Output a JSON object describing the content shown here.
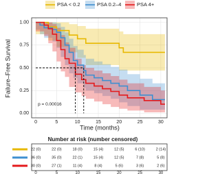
{
  "chart_data": {
    "type": "survival",
    "step": true,
    "grid": true,
    "legend_position": "top",
    "y_label": "Failure–Free Survival",
    "x_label": "Time (months)",
    "annotation": "p = 0.00016",
    "median_level": 0.5,
    "medians": [
      9.5,
      11.5
    ],
    "xlim": [
      -1,
      31.5
    ],
    "ylim": [
      -0.05,
      1.05
    ],
    "xticks": [
      0,
      5,
      10,
      15,
      20,
      25,
      30
    ],
    "yticks": [
      {
        "value": 0,
        "label": "0.00"
      },
      {
        "value": 0.25,
        "label": "0.25"
      },
      {
        "value": 0.5,
        "label": "0.50"
      },
      {
        "value": 0.75,
        "label": "0.75"
      },
      {
        "value": 1,
        "label": "1.00"
      }
    ],
    "series": [
      {
        "name": "PSA < 0.2",
        "color": "#E7B800",
        "x": [
          0,
          3,
          5,
          8,
          10,
          12,
          20,
          21,
          31
        ],
        "values": [
          1,
          0.95,
          0.91,
          0.86,
          0.82,
          0.77,
          0.72,
          0.67,
          0.67
        ],
        "lower": [
          1,
          0.87,
          0.8,
          0.73,
          0.67,
          0.61,
          0.53,
          0.47,
          0.47
        ],
        "upper": [
          1,
          1,
          1,
          0.98,
          0.96,
          0.93,
          0.9,
          0.87,
          0.87
        ]
      },
      {
        "name": "PSA 0.2–4",
        "color": "#3E8FD0",
        "x": [
          0,
          1,
          2,
          4,
          5,
          6,
          7,
          8,
          9,
          10,
          11.5,
          12,
          14,
          16,
          18,
          20,
          22,
          25,
          28,
          31
        ],
        "values": [
          1,
          0.97,
          0.94,
          0.92,
          0.89,
          0.83,
          0.75,
          0.67,
          0.58,
          0.53,
          0.47,
          0.42,
          0.39,
          0.36,
          0.33,
          0.3,
          0.25,
          0.2,
          0.15,
          0.15
        ],
        "lower": [
          1,
          0.92,
          0.87,
          0.83,
          0.79,
          0.72,
          0.62,
          0.53,
          0.44,
          0.39,
          0.33,
          0.28,
          0.25,
          0.22,
          0.19,
          0.16,
          0.12,
          0.08,
          0.04,
          0.04
        ],
        "upper": [
          1,
          1,
          1,
          1,
          0.99,
          0.95,
          0.89,
          0.82,
          0.74,
          0.7,
          0.64,
          0.6,
          0.57,
          0.54,
          0.51,
          0.48,
          0.43,
          0.38,
          0.33,
          0.33
        ]
      },
      {
        "name": "PSA 4+",
        "color": "#E41A1C",
        "x": [
          0,
          2,
          3,
          4,
          5,
          6,
          7,
          8,
          9.5,
          11,
          12,
          14,
          16,
          18,
          20,
          22,
          26,
          30,
          31
        ],
        "values": [
          1,
          0.97,
          0.93,
          0.87,
          0.8,
          0.7,
          0.6,
          0.55,
          0.43,
          0.37,
          0.33,
          0.3,
          0.27,
          0.24,
          0.2,
          0.17,
          0.14,
          0.1,
          0.1
        ],
        "lower": [
          1,
          0.9,
          0.85,
          0.77,
          0.68,
          0.57,
          0.46,
          0.4,
          0.29,
          0.23,
          0.19,
          0.16,
          0.13,
          0.1,
          0.07,
          0.05,
          0.03,
          0.01,
          0.01
        ],
        "upper": [
          1,
          1,
          1,
          0.98,
          0.94,
          0.86,
          0.78,
          0.72,
          0.6,
          0.53,
          0.5,
          0.47,
          0.44,
          0.41,
          0.37,
          0.33,
          0.29,
          0.25,
          0.25
        ]
      }
    ]
  },
  "risk_table": {
    "title": "Number at risk (number censored)",
    "times": [
      0,
      5,
      10,
      15,
      20,
      25,
      30
    ],
    "rows": [
      [
        "22 (0)",
        "22 (0)",
        "18 (0)",
        "15 (4)",
        "12 (5)",
        "6 (10)",
        "2 (14)"
      ],
      [
        "36 (0)",
        "35 (0)",
        "22 (1)",
        "15 (4)",
        "12 (5)",
        "7 (8)",
        "5 (8)"
      ],
      [
        "30 (0)",
        "27 (1)",
        "11 (4)",
        "8 (4)",
        "5 (6)",
        "3 (6)",
        "2 (6)"
      ]
    ]
  }
}
